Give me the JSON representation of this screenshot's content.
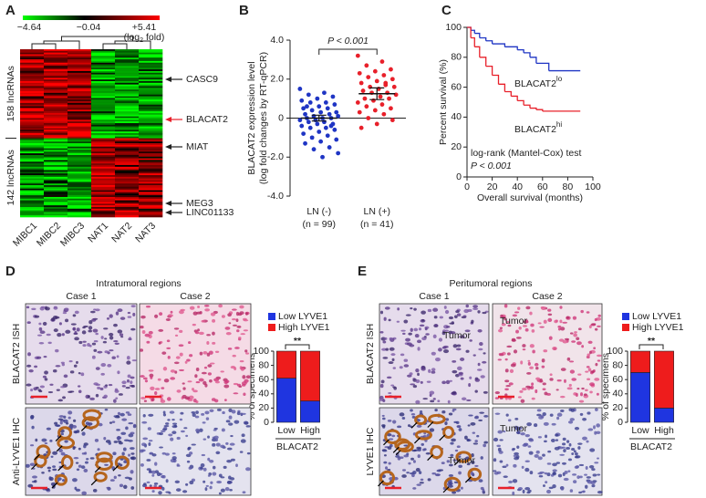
{
  "panel_labels": [
    "A",
    "B",
    "C",
    "D",
    "E"
  ],
  "heatmap": {
    "scale_ticks": [
      "−4.64",
      "−0.04",
      "+5.41"
    ],
    "scale_unit": [
      "(log",
      "2",
      " fold)"
    ],
    "row_groups": [
      "158 lncRNAs",
      "142 lncRNAs"
    ],
    "columns": [
      "MIBC1",
      "MIBC2",
      "MIBC3",
      "NAT1",
      "NAT2",
      "NAT3"
    ],
    "genes": [
      {
        "label": "CASC9",
        "color": "#222222"
      },
      {
        "label": "BLACAT2",
        "color": "#e8202a"
      },
      {
        "label": "MIAT",
        "color": "#222222"
      },
      {
        "label": "MEG3",
        "color": "#222222"
      },
      {
        "label": "LINC01133",
        "color": "#222222"
      }
    ]
  },
  "image_panels": [
    {
      "title": "Intratumoral regions",
      "cases": [
        "Case 1",
        "Case 2"
      ],
      "rows": [
        "BLACAT2 ISH",
        "Anti-LYVE1 IHC"
      ]
    },
    {
      "title": "Peritumoral regions",
      "cases": [
        "Case 1",
        "Case 2"
      ],
      "rows": [
        "BLACAT2 ISH",
        "LYVE1 IHC"
      ],
      "annotations": [
        "Tumor",
        "Tumor",
        "Tumor",
        "Tumor"
      ]
    }
  ],
  "chart_data": [
    {
      "type": "strip",
      "y_label": [
        "BLACAT2 expression level",
        "(log fold changes by RT-qPCR)"
      ],
      "categories": [
        "LN (-)",
        "LN (+)"
      ],
      "category_notes": [
        "(n = 99)",
        "(n = 41)"
      ],
      "colors": [
        "#1f35c4",
        "#e8202a"
      ],
      "values": [
        [
          1.5,
          1.3,
          1.2,
          1.1,
          1.0,
          0.9,
          0.8,
          0.8,
          0.7,
          0.6,
          0.5,
          0.5,
          0.4,
          0.3,
          0.3,
          0.2,
          0.2,
          0.1,
          0.1,
          0.0,
          0.0,
          0.0,
          -0.1,
          -0.1,
          -0.2,
          -0.2,
          -0.3,
          -0.3,
          -0.4,
          -0.5,
          -0.5,
          -0.6,
          -0.7,
          -0.8,
          -0.9,
          -1.0,
          -1.1,
          -1.2,
          -1.3,
          -1.5,
          -1.6,
          -1.8,
          -2.0,
          0.6,
          -0.4
        ],
        [
          3.2,
          2.9,
          2.7,
          2.5,
          2.4,
          2.3,
          2.2,
          2.1,
          2.0,
          1.9,
          1.8,
          1.7,
          1.6,
          1.6,
          1.5,
          1.4,
          1.3,
          1.3,
          1.2,
          1.1,
          1.0,
          1.0,
          0.9,
          0.8,
          0.7,
          0.6,
          0.5,
          0.4,
          0.3,
          0.2,
          0.0,
          -0.1,
          -0.3,
          -0.5,
          1.8
        ]
      ],
      "means": [
        0.0,
        1.25
      ],
      "errors": [
        0.15,
        0.3
      ],
      "annotation": "P < 0.001",
      "ylim": [
        -4.0,
        4.0
      ],
      "yticks": [
        {
          "value": -4.0,
          "label": "-4.0"
        },
        {
          "value": -2.0,
          "label": "-2.0"
        },
        0,
        {
          "value": 2.0,
          "label": "2.0"
        },
        {
          "value": 4.0,
          "label": "4.0"
        }
      ]
    },
    {
      "type": "step",
      "x_label": "Overall survival (months)",
      "y_label": "Percent survival (%)",
      "series": [
        {
          "name": "BLACAT2",
          "name_sup": "lo",
          "color": "#1f35c4",
          "x": [
            0,
            3,
            6,
            10,
            15,
            20,
            30,
            40,
            45,
            50,
            55,
            65,
            90
          ],
          "values": [
            100,
            98,
            96,
            93,
            91,
            89,
            87,
            85,
            83,
            80,
            76,
            71,
            71
          ]
        },
        {
          "name": "BLACAT2",
          "name_sup": "hi",
          "color": "#e8202a",
          "x": [
            0,
            3,
            6,
            10,
            15,
            20,
            25,
            30,
            35,
            40,
            45,
            50,
            55,
            60,
            90
          ],
          "values": [
            100,
            93,
            87,
            80,
            74,
            68,
            62,
            57,
            54,
            51,
            48,
            46,
            45,
            44,
            44
          ]
        }
      ],
      "annotations": [
        "log-rank (Mantel-Cox) test",
        "P < 0.001"
      ],
      "xlim": [
        0,
        100
      ],
      "xticks": [
        0,
        20,
        40,
        60,
        80,
        100
      ],
      "ylim": [
        0,
        100
      ],
      "yticks": [
        0,
        20,
        40,
        60,
        80,
        100
      ]
    },
    {
      "type": "stacked-bar",
      "y_label": "% of specimens",
      "group_label": "BLACAT2",
      "significance": "**",
      "categories": [
        "Low",
        "High"
      ],
      "series": [
        {
          "name": "Low LYVE1",
          "color": "#1f35e0",
          "values": [
            62,
            30
          ]
        },
        {
          "name": "High LYVE1",
          "color": "#ee1c1c",
          "values": [
            38,
            70
          ]
        }
      ],
      "ylim": [
        0,
        100
      ],
      "yticks": [
        0,
        20,
        40,
        60,
        80,
        100
      ]
    },
    {
      "type": "stacked-bar",
      "y_label": "% of specimens",
      "group_label": "BLACAT2",
      "significance": "**",
      "categories": [
        "Low",
        "High"
      ],
      "series": [
        {
          "name": "Low LYVE1",
          "color": "#1f35e0",
          "values": [
            70,
            20
          ]
        },
        {
          "name": "High LYVE1",
          "color": "#ee1c1c",
          "values": [
            30,
            80
          ]
        }
      ],
      "ylim": [
        0,
        100
      ],
      "yticks": [
        0,
        20,
        40,
        60,
        80,
        100
      ]
    }
  ]
}
